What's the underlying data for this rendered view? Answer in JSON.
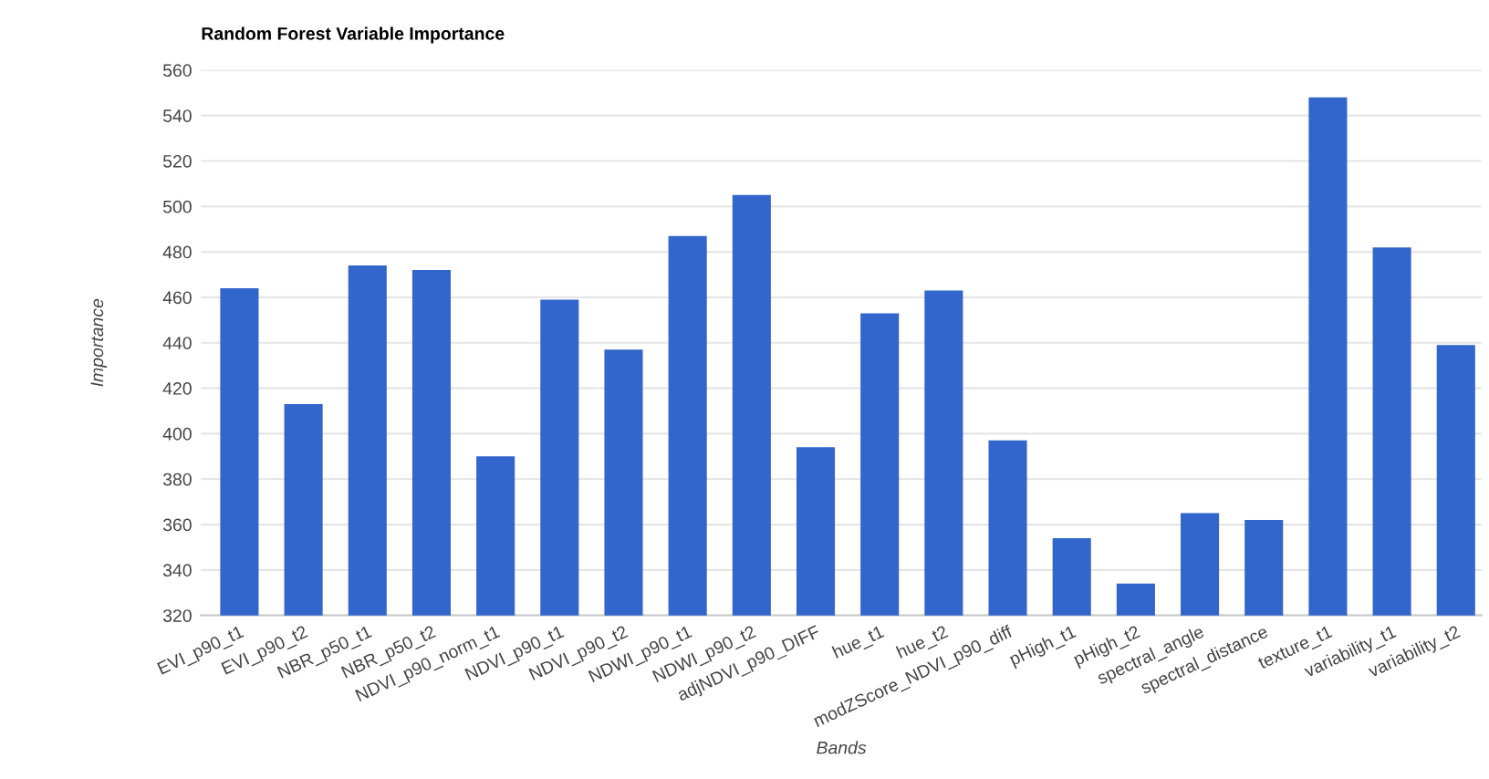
{
  "chart_data": {
    "type": "bar",
    "title": "Random Forest Variable Importance",
    "xlabel": "Bands",
    "ylabel": "Importance",
    "categories": [
      "EVI_p90_t1",
      "EVI_p90_t2",
      "NBR_p50_t1",
      "NBR_p50_t2",
      "NDVI_p90_norm_t1",
      "NDVI_p90_t1",
      "NDVI_p90_t2",
      "NDWI_p90_t1",
      "NDWI_p90_t2",
      "adjNDVI_p90_DIFF",
      "hue_t1",
      "hue_t2",
      "modZScore_NDVI_p90_diff",
      "pHigh_t1",
      "pHigh_t2",
      "spectral_angle",
      "spectral_distance",
      "texture_t1",
      "variability_t1",
      "variability_t2"
    ],
    "values": [
      464,
      413,
      474,
      472,
      390,
      459,
      437,
      487,
      505,
      394,
      453,
      463,
      397,
      354,
      334,
      365,
      362,
      548,
      482,
      439
    ],
    "color": "#3366cc",
    "ylim": [
      320,
      560
    ],
    "yticks": [
      320,
      340,
      360,
      380,
      400,
      420,
      440,
      460,
      480,
      500,
      520,
      540,
      560
    ],
    "grid": "y"
  }
}
